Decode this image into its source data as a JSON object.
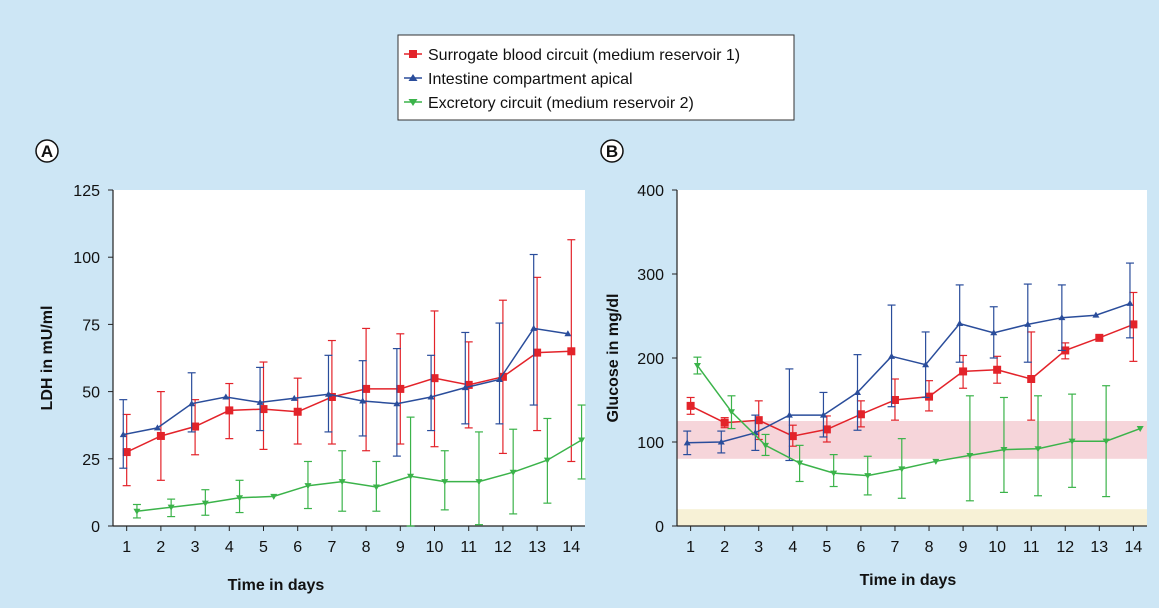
{
  "colors": {
    "background": "#cde6f5",
    "plot_background": "#ffffff",
    "surrogate": "#e3232a",
    "intestine": "#2a4d9b",
    "excretory": "#3bb34a",
    "normal_range_band": "#f6d5da",
    "low_band": "#f7f1d6"
  },
  "legend": {
    "items": [
      {
        "label": "Surrogate blood circuit (medium reservoir 1)",
        "color": "#e3232a",
        "marker": "square"
      },
      {
        "label": "Intestine compartment apical",
        "color": "#2a4d9b",
        "marker": "triangle-up"
      },
      {
        "label": "Excretory circuit (medium reservoir 2)",
        "color": "#3bb34a",
        "marker": "triangle-down"
      }
    ]
  },
  "chart_data": [
    {
      "panel": "A",
      "type": "line",
      "xlabel": "Time in days",
      "ylabel": "LDH in mU/ml",
      "xlim": [
        0.6,
        14.4
      ],
      "ylim": [
        0,
        125
      ],
      "xticks": [
        1,
        2,
        3,
        4,
        5,
        6,
        7,
        8,
        9,
        10,
        11,
        12,
        13,
        14
      ],
      "yticks": [
        0,
        25,
        50,
        75,
        100,
        125
      ],
      "legend_position": "top-center",
      "grid": false,
      "series": [
        {
          "name": "Surrogate blood circuit (medium reservoir 1)",
          "color": "#e3232a",
          "marker": "square",
          "x": [
            1,
            2,
            3,
            4,
            5,
            6,
            7,
            8,
            9,
            10,
            11,
            12,
            13,
            14
          ],
          "y": [
            27.5,
            33.5,
            37,
            43,
            43.5,
            42.5,
            48,
            51,
            51,
            55,
            52.5,
            55.5,
            64.5,
            65
          ],
          "err_low": [
            15,
            17,
            26.5,
            32.5,
            28.5,
            30.5,
            30.5,
            28,
            30.5,
            29.5,
            36.5,
            27,
            35.5,
            24
          ],
          "err_high": [
            41.5,
            50,
            47,
            53,
            61,
            55,
            69,
            73.5,
            71.5,
            80,
            68.5,
            84,
            92.5,
            106.5
          ]
        },
        {
          "name": "Intestine compartment apical",
          "color": "#2a4d9b",
          "marker": "triangle-up",
          "x": [
            0.9,
            1.9,
            2.9,
            3.9,
            4.9,
            5.9,
            6.9,
            7.9,
            8.9,
            9.9,
            10.9,
            11.9,
            12.9,
            13.9
          ],
          "y": [
            34,
            36.5,
            45.5,
            48,
            46,
            47.5,
            49,
            46.5,
            45.5,
            48,
            51.5,
            54.5,
            73.5,
            71.5
          ],
          "err_low": [
            21.5,
            null,
            35,
            null,
            35.5,
            null,
            35,
            33.5,
            26,
            35.5,
            38,
            38,
            45,
            null
          ],
          "err_high": [
            47,
            null,
            57,
            null,
            59,
            null,
            63.5,
            61.5,
            66,
            63.5,
            72,
            75.5,
            101,
            null
          ]
        },
        {
          "name": "Excretory circuit (medium reservoir 2)",
          "color": "#3bb34a",
          "marker": "triangle-down",
          "x": [
            1.3,
            2.3,
            3.3,
            4.3,
            5.3,
            6.3,
            7.3,
            8.3,
            9.3,
            10.3,
            11.3,
            12.3,
            13.3,
            14.3
          ],
          "y": [
            5.5,
            7,
            8.5,
            10.5,
            11,
            15,
            16.5,
            14.5,
            18.5,
            16.5,
            16.5,
            20,
            24.5,
            32
          ],
          "err_low": [
            3,
            3.5,
            4,
            5,
            null,
            6.5,
            5.5,
            5.5,
            0,
            6,
            0.5,
            4.5,
            8.5,
            17.5
          ],
          "err_high": [
            8,
            10,
            13.5,
            17,
            null,
            24,
            28,
            24,
            40.5,
            28,
            35,
            36,
            40,
            45
          ]
        }
      ]
    },
    {
      "panel": "B",
      "type": "line",
      "xlabel": "Time in days",
      "ylabel": "Glucose in mg/dl",
      "xlim": [
        0.6,
        14.4
      ],
      "ylim": [
        0,
        400
      ],
      "xticks": [
        1,
        2,
        3,
        4,
        5,
        6,
        7,
        8,
        9,
        10,
        11,
        12,
        13,
        14
      ],
      "yticks": [
        0,
        100,
        200,
        300,
        400
      ],
      "grid": false,
      "bands": [
        {
          "y0": 80,
          "y1": 125,
          "color": "#f6d5da"
        },
        {
          "y0": 0,
          "y1": 20,
          "color": "#f7f1d6"
        }
      ],
      "series": [
        {
          "name": "Surrogate blood circuit (medium reservoir 1)",
          "color": "#e3232a",
          "marker": "square",
          "x": [
            1,
            2,
            3,
            4,
            5,
            6,
            7,
            8,
            9,
            10,
            11,
            12,
            13,
            14
          ],
          "y": [
            143,
            123,
            126,
            107,
            115,
            133,
            150,
            154,
            184,
            186,
            175,
            209,
            224,
            240
          ],
          "err_low": [
            133,
            117,
            103,
            95,
            100,
            118,
            126,
            137,
            164,
            170,
            126,
            199,
            null,
            196
          ],
          "err_high": [
            153,
            129,
            149,
            120,
            131,
            149,
            175,
            173,
            203,
            202,
            231,
            218,
            null,
            278
          ]
        },
        {
          "name": "Intestine compartment apical",
          "color": "#2a4d9b",
          "marker": "triangle-up",
          "x": [
            0.9,
            1.9,
            2.9,
            3.9,
            4.9,
            5.9,
            6.9,
            7.9,
            8.9,
            9.9,
            10.9,
            11.9,
            12.9,
            13.9
          ],
          "y": [
            99,
            100,
            111,
            132,
            132,
            159,
            202,
            192,
            241,
            230,
            240,
            248,
            251,
            265
          ],
          "err_low": [
            85,
            87,
            90,
            78,
            106,
            114,
            142,
            153,
            195,
            200,
            195,
            209,
            null,
            224
          ],
          "err_high": [
            113,
            113,
            132,
            187,
            159,
            204,
            263,
            231,
            287,
            261,
            288,
            287,
            null,
            313
          ]
        },
        {
          "name": "Excretory circuit (medium reservoir 2)",
          "color": "#3bb34a",
          "marker": "triangle-down",
          "x": [
            1.2,
            2.2,
            3.2,
            4.2,
            5.2,
            6.2,
            7.2,
            8.2,
            9.2,
            10.2,
            11.2,
            12.2,
            13.2,
            14.2
          ],
          "y": [
            191,
            136,
            96,
            75,
            63,
            60,
            68,
            77,
            84,
            91,
            92,
            101,
            101,
            116
          ],
          "err_low": [
            181,
            116,
            84,
            53,
            47,
            37,
            33,
            null,
            30,
            40,
            36,
            46,
            35,
            null
          ],
          "err_high": [
            201,
            155,
            109,
            96,
            85,
            83,
            104,
            null,
            155,
            153,
            155,
            157,
            167,
            null
          ]
        }
      ]
    }
  ]
}
